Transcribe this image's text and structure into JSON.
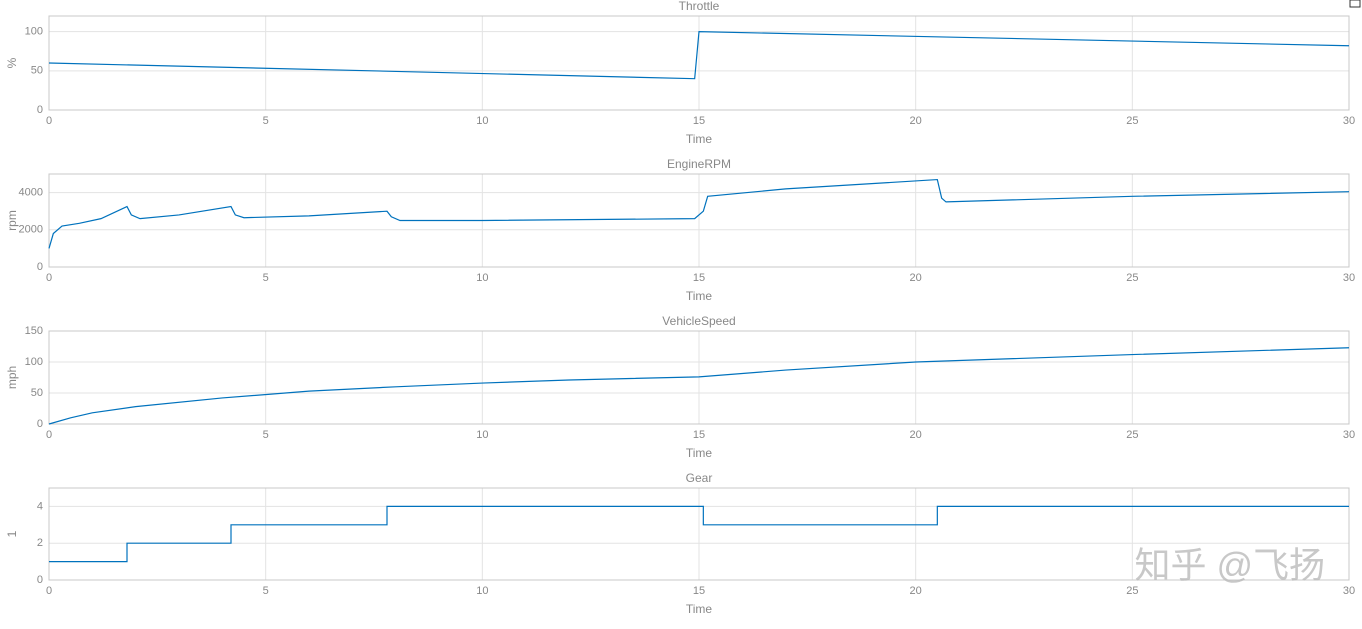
{
  "chart_data": [
    {
      "type": "line",
      "title": "Throttle",
      "xlabel": "Time",
      "ylabel": "%",
      "color": "#0072bd",
      "grid": true,
      "x": [
        0,
        14.9,
        15,
        30
      ],
      "values": [
        60,
        40,
        100,
        82
      ],
      "xlim": [
        0,
        30
      ],
      "xticks": [
        0,
        5,
        10,
        15,
        20,
        25,
        30
      ],
      "ylim": [
        0,
        120
      ],
      "yticks": [
        0,
        50,
        100
      ]
    },
    {
      "type": "line",
      "title": "EngineRPM",
      "xlabel": "Time",
      "ylabel": "rpm",
      "color": "#0072bd",
      "grid": true,
      "x": [
        0,
        0.1,
        0.3,
        0.7,
        1.2,
        1.8,
        1.9,
        2.1,
        3,
        4.2,
        4.3,
        4.5,
        6,
        7.8,
        7.9,
        8.1,
        10,
        14.9,
        15.1,
        15.2,
        17,
        20.5,
        20.6,
        20.7,
        25,
        30
      ],
      "values": [
        1000,
        1800,
        2200,
        2350,
        2600,
        3250,
        2800,
        2600,
        2800,
        3250,
        2800,
        2650,
        2750,
        3000,
        2700,
        2500,
        2500,
        2600,
        3000,
        3800,
        4200,
        4700,
        3700,
        3500,
        3800,
        4050
      ],
      "xlim": [
        0,
        30
      ],
      "xticks": [
        0,
        5,
        10,
        15,
        20,
        25,
        30
      ],
      "ylim": [
        0,
        5000
      ],
      "yticks": [
        0,
        2000,
        4000
      ]
    },
    {
      "type": "line",
      "title": "VehicleSpeed",
      "xlabel": "Time",
      "ylabel": "mph",
      "color": "#0072bd",
      "grid": true,
      "x": [
        0,
        0.5,
        1,
        2,
        4,
        6,
        8,
        10,
        12,
        15,
        17,
        20,
        25,
        30
      ],
      "values": [
        0,
        10,
        18,
        28,
        42,
        53,
        60,
        66,
        71,
        76,
        87,
        100,
        112,
        123
      ],
      "xlim": [
        0,
        30
      ],
      "xticks": [
        0,
        5,
        10,
        15,
        20,
        25,
        30
      ],
      "ylim": [
        0,
        150
      ],
      "yticks": [
        0,
        50,
        100,
        150
      ]
    },
    {
      "type": "line",
      "title": "Gear",
      "xlabel": "Time",
      "ylabel": "1",
      "color": "#0072bd",
      "grid": true,
      "x": [
        0,
        1.8,
        1.8,
        4.2,
        4.2,
        7.8,
        7.8,
        15.1,
        15.1,
        20.5,
        20.5,
        30
      ],
      "values": [
        1,
        1,
        2,
        2,
        3,
        3,
        4,
        4,
        3,
        3,
        4,
        4
      ],
      "xlim": [
        0,
        30
      ],
      "xticks": [
        0,
        5,
        10,
        15,
        20,
        25,
        30
      ],
      "ylim": [
        0,
        5
      ],
      "yticks": [
        0,
        2,
        4
      ]
    }
  ],
  "watermark": "知乎 @飞扬"
}
